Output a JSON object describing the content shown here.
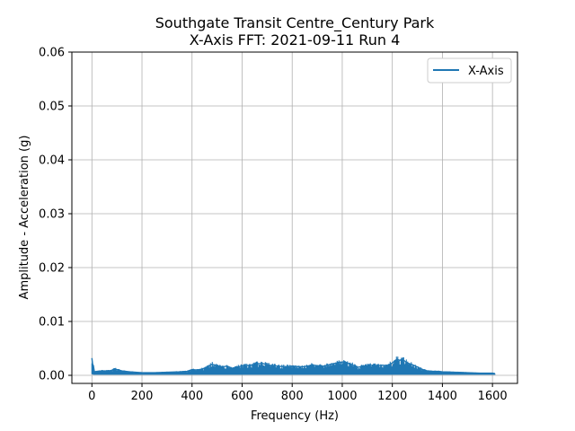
{
  "chart_data": {
    "type": "line",
    "title_line1": "Southgate Transit Centre_Century Park",
    "title_line2": "X-Axis FFT: 2021-09-11 Run 4",
    "xlabel": "Frequency (Hz)",
    "ylabel": "Amplitude - Acceleration (g)",
    "xlim": [
      -80,
      1700
    ],
    "ylim": [
      -0.0015,
      0.06
    ],
    "xticks": [
      0,
      200,
      400,
      600,
      800,
      1000,
      1200,
      1400,
      1600
    ],
    "xtick_labels": [
      "0",
      "200",
      "400",
      "600",
      "800",
      "1000",
      "1200",
      "1400",
      "1600"
    ],
    "yticks": [
      0.0,
      0.01,
      0.02,
      0.03,
      0.04,
      0.05,
      0.06
    ],
    "ytick_labels": [
      "0.00",
      "0.01",
      "0.02",
      "0.03",
      "0.04",
      "0.05",
      "0.06"
    ],
    "grid": true,
    "legend_position": "top-right",
    "series": [
      {
        "name": "X-Axis",
        "color": "#1f77b4",
        "envelope_note": "dense FFT amplitude trace; values are upper envelope (max) sampled along frequency, lower bound near 0",
        "x": [
          0,
          3,
          6,
          10,
          20,
          40,
          60,
          80,
          90,
          100,
          120,
          150,
          200,
          250,
          300,
          350,
          380,
          400,
          420,
          440,
          460,
          480,
          500,
          520,
          540,
          560,
          580,
          600,
          620,
          640,
          660,
          680,
          700,
          720,
          740,
          760,
          780,
          800,
          820,
          840,
          860,
          880,
          900,
          920,
          940,
          960,
          980,
          1000,
          1010,
          1020,
          1040,
          1060,
          1080,
          1100,
          1120,
          1140,
          1160,
          1180,
          1200,
          1210,
          1220,
          1230,
          1240,
          1250,
          1260,
          1280,
          1300,
          1320,
          1340,
          1360,
          1380,
          1400,
          1450,
          1500,
          1550,
          1600,
          1610
        ],
        "max": [
          0.0039,
          0.0025,
          0.0022,
          0.0008,
          0.0009,
          0.001,
          0.001,
          0.0011,
          0.0015,
          0.0013,
          0.001,
          0.0008,
          0.0006,
          0.0006,
          0.0007,
          0.0008,
          0.0009,
          0.0013,
          0.0012,
          0.0014,
          0.0019,
          0.0025,
          0.0022,
          0.0019,
          0.0021,
          0.0016,
          0.0019,
          0.0021,
          0.0022,
          0.0023,
          0.0026,
          0.0027,
          0.0024,
          0.0022,
          0.0021,
          0.002,
          0.002,
          0.0021,
          0.002,
          0.0019,
          0.0021,
          0.0023,
          0.0022,
          0.002,
          0.0023,
          0.0026,
          0.0028,
          0.003,
          0.0031,
          0.0028,
          0.0024,
          0.0018,
          0.002,
          0.0022,
          0.0023,
          0.0022,
          0.0023,
          0.0022,
          0.0028,
          0.0033,
          0.0036,
          0.0034,
          0.0037,
          0.0032,
          0.0028,
          0.0024,
          0.0019,
          0.0013,
          0.001,
          0.0009,
          0.0009,
          0.0008,
          0.0007,
          0.0006,
          0.0005,
          0.0005,
          0.0004
        ],
        "min": [
          0.0002,
          0.0002,
          0.0001,
          0.0001,
          0.0001,
          0.0001,
          0.0001,
          0.0001,
          0.0001,
          0.0001,
          0.0001,
          0.0001,
          0.0001,
          0.0001,
          0.0001,
          0.0001,
          0.0001,
          0.0001,
          0.0001,
          0.0001,
          0.0001,
          0.0001,
          0.0001,
          0.0001,
          0.0001,
          0.0001,
          0.0001,
          0.0001,
          0.0001,
          0.0001,
          0.0001,
          0.0001,
          0.0001,
          0.0001,
          0.0001,
          0.0001,
          0.0001,
          0.0001,
          0.0001,
          0.0001,
          0.0001,
          0.0001,
          0.0001,
          0.0001,
          0.0001,
          0.0001,
          0.0001,
          0.0001,
          0.0001,
          0.0001,
          0.0001,
          0.0001,
          0.0001,
          0.0001,
          0.0001,
          0.0001,
          0.0001,
          0.0001,
          0.0001,
          0.0001,
          0.0001,
          0.0001,
          0.0001,
          0.0001,
          0.0001,
          0.0001,
          0.0001,
          0.0001,
          0.0001,
          0.0001,
          0.0001,
          0.0001,
          0.0001,
          0.0001,
          0.0001,
          0.0001,
          0.0001
        ]
      }
    ]
  }
}
